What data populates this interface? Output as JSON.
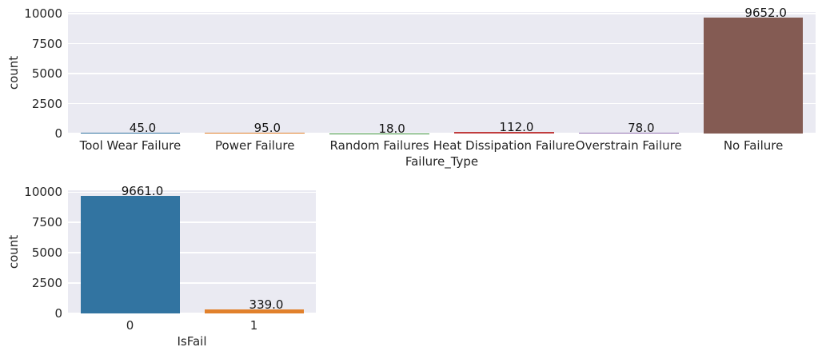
{
  "figure": {
    "background": "#ffffff",
    "plot_background": "#eaeaf2",
    "grid_color": "#ffffff",
    "tick_text_color": "#262626",
    "value_label_color": "#141414"
  },
  "chart_data": [
    {
      "type": "bar",
      "title": "",
      "xlabel": "Failure_Type",
      "ylabel": "count",
      "categories": [
        "Tool Wear Failure",
        "Power Failure",
        "Random Failures",
        "Heat Dissipation Failure",
        "Overstrain Failure",
        "No Failure"
      ],
      "values": [
        45,
        95,
        18,
        112,
        78,
        9652
      ],
      "bar_labels": [
        "45.0",
        "95.0",
        "18.0",
        "112.0",
        "78.0",
        "9652.0"
      ],
      "bar_colors": [
        "#3274a1",
        "#e1812c",
        "#3a923a",
        "#c03d3e",
        "#9372b2",
        "#845b53"
      ],
      "ylim": [
        0,
        10135
      ],
      "yticks": [
        0,
        2500,
        5000,
        7500,
        10000
      ],
      "grid": true,
      "legend": false
    },
    {
      "type": "bar",
      "title": "",
      "xlabel": "IsFail",
      "ylabel": "count",
      "categories": [
        "0",
        "1"
      ],
      "values": [
        9661,
        339
      ],
      "bar_labels": [
        "9661.0",
        "339.0"
      ],
      "bar_colors": [
        "#3274a1",
        "#e1812c"
      ],
      "ylim": [
        0,
        10145
      ],
      "yticks": [
        0,
        2500,
        5000,
        7500,
        10000
      ],
      "grid": true,
      "legend": false
    }
  ]
}
